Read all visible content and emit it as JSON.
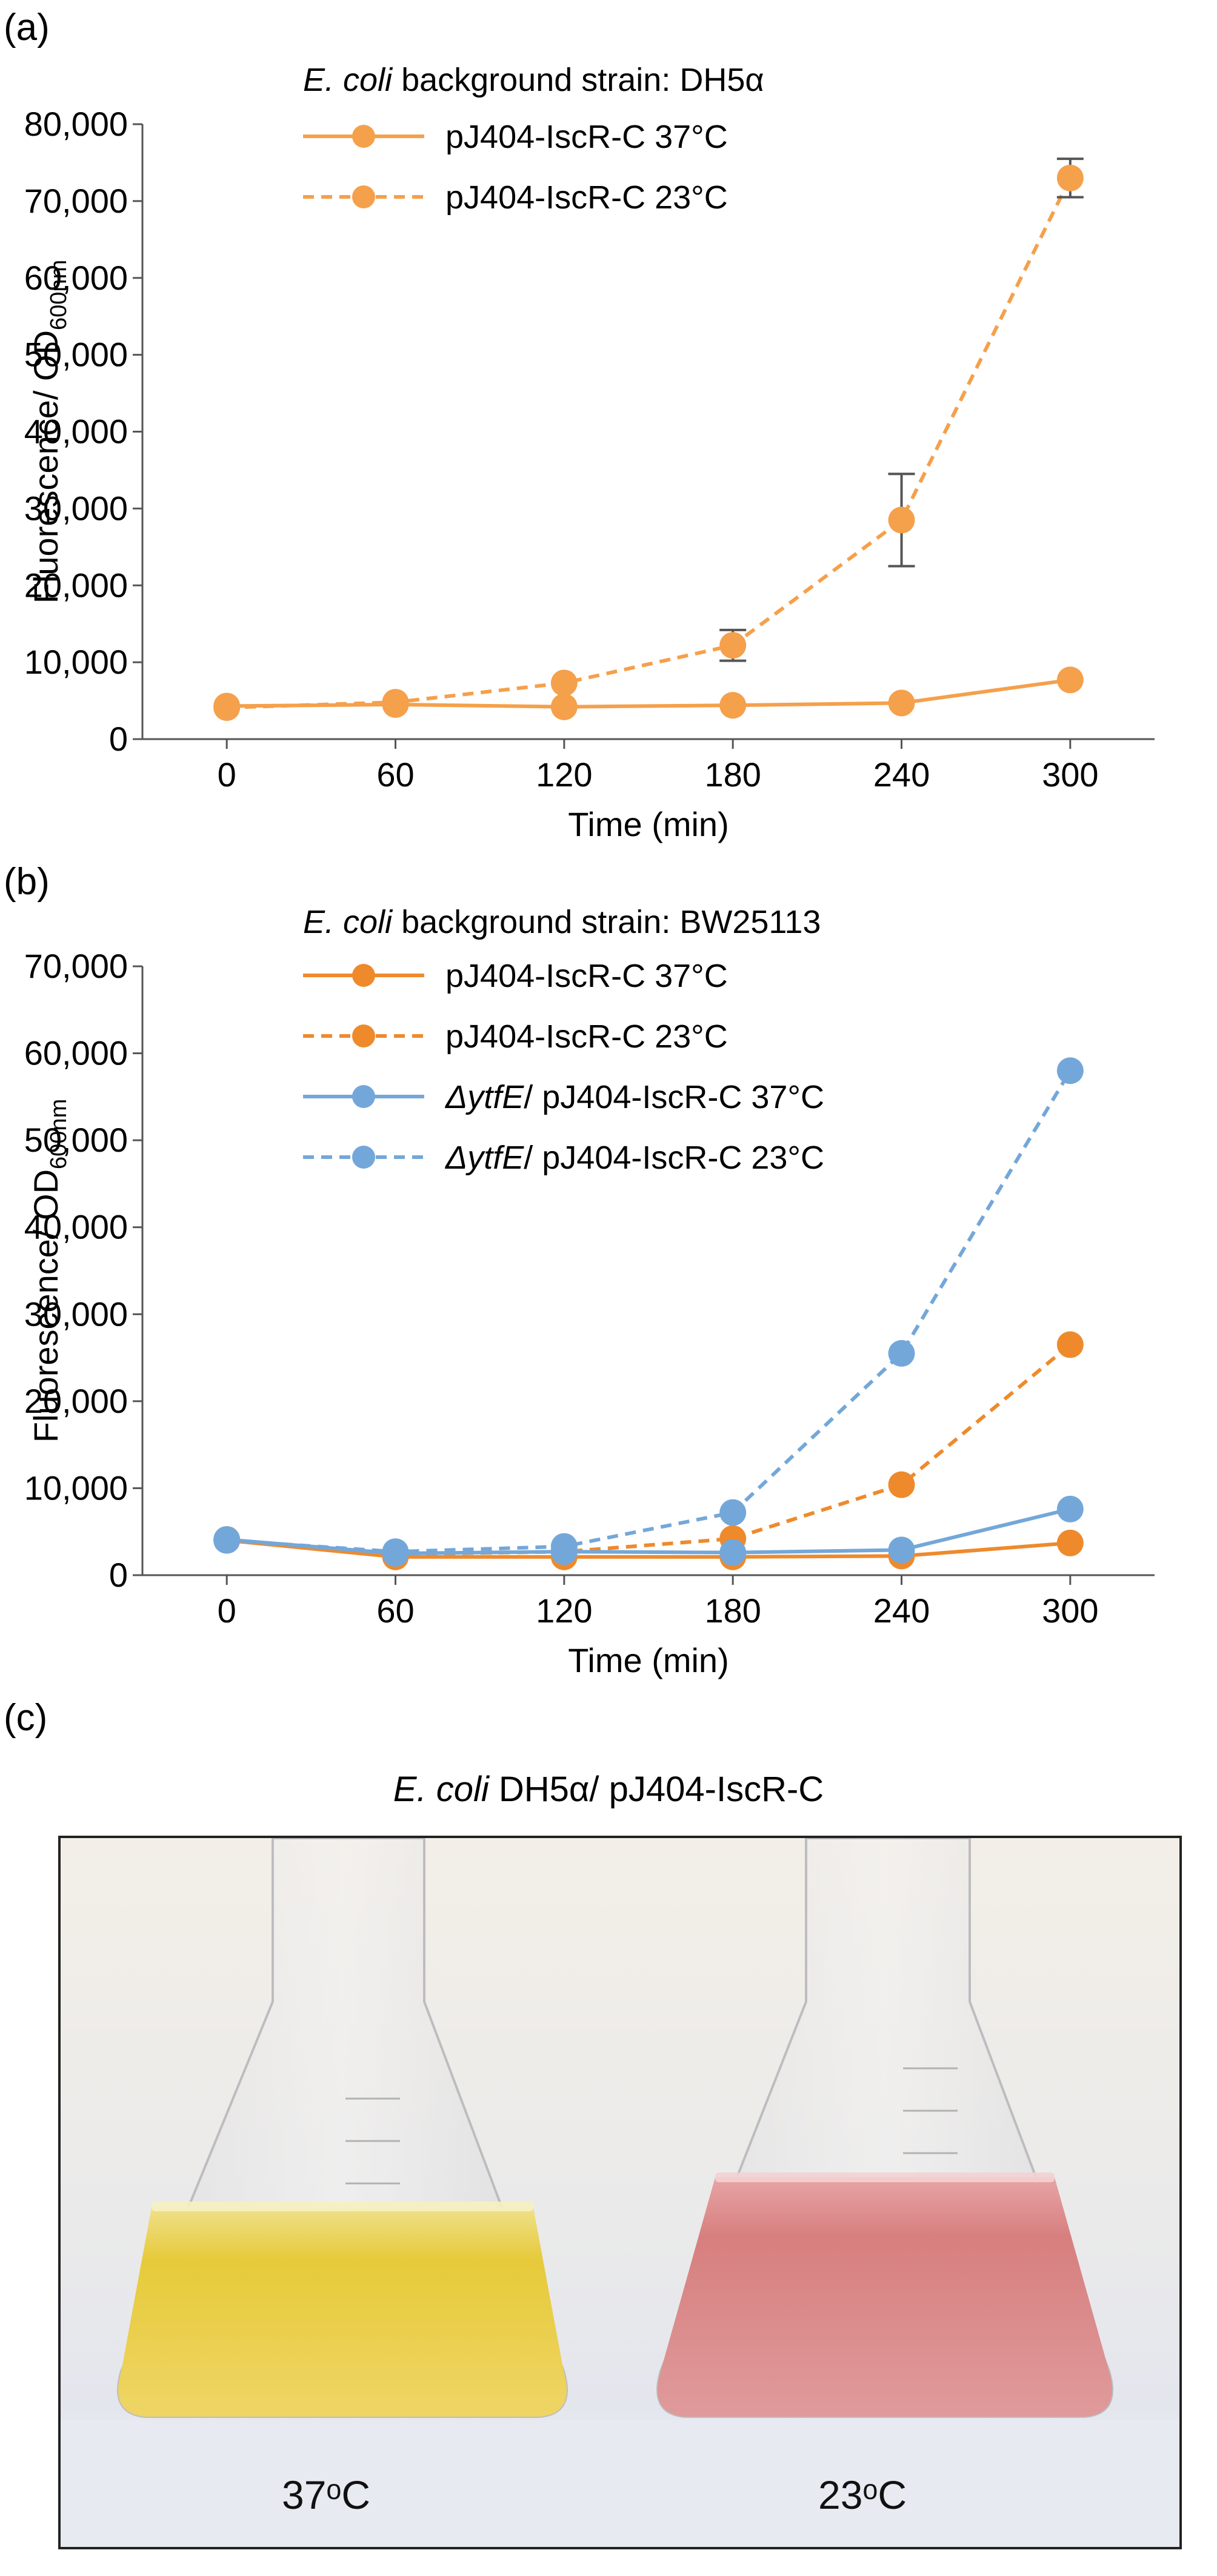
{
  "panels": {
    "a": {
      "label": "(a)"
    },
    "b": {
      "label": "(b)"
    },
    "c": {
      "label": "(c)"
    }
  },
  "colors": {
    "orange": "#F5A04B",
    "dark_orange": "#EE8A2C",
    "blue": "#74A7D9",
    "axis": "#555555"
  },
  "chart_data": [
    {
      "type": "line",
      "title_italic": "E. coli",
      "title_rest": " background  strain: DH5α",
      "ylabel_main": "Fluorescence/ OD",
      "ylabel_sub": "600nm",
      "xlabel": "Time (min)",
      "x": [
        0,
        60,
        120,
        180,
        240,
        300
      ],
      "xlim": [
        -30,
        330
      ],
      "ylim": [
        0,
        80000
      ],
      "yticks": [
        0,
        10000,
        20000,
        30000,
        40000,
        50000,
        60000,
        70000,
        80000
      ],
      "ytick_labels": [
        "0",
        "10,000",
        "20,000",
        "30,000",
        "40,000",
        "50,000",
        "60,000",
        "70,000",
        "80,000"
      ],
      "legend_position": "top-left",
      "series": [
        {
          "name": "pJ404-IscR-C  37°C",
          "name_italic": "",
          "name_rest": "pJ404-IscR-C  37°C",
          "color": "#F5A04B",
          "dashed": false,
          "values": [
            4300,
            4500,
            4200,
            4400,
            4700,
            7700
          ],
          "errors": [
            0,
            0,
            0,
            0,
            0,
            0
          ]
        },
        {
          "name": "pJ404-IscR-C  23°C",
          "name_italic": "",
          "name_rest": "pJ404-IscR-C  23°C",
          "color": "#F5A04B",
          "dashed": true,
          "values": [
            4100,
            4800,
            7300,
            12200,
            28500,
            73000
          ],
          "errors": [
            0,
            0,
            0,
            2000,
            6000,
            2500
          ]
        }
      ]
    },
    {
      "type": "line",
      "title_italic": "E. coli",
      "title_rest": " background  strain: BW25113",
      "ylabel_main": "Fluorescence/ OD",
      "ylabel_sub": "600nm",
      "xlabel": "Time (min)",
      "x": [
        0,
        60,
        120,
        180,
        240,
        300
      ],
      "xlim": [
        -30,
        330
      ],
      "ylim": [
        0,
        70000
      ],
      "yticks": [
        0,
        10000,
        20000,
        30000,
        40000,
        50000,
        60000,
        70000
      ],
      "ytick_labels": [
        "0",
        "10,000",
        "20,000",
        "30,000",
        "40,000",
        "50,000",
        "60,000",
        "70,000"
      ],
      "legend_position": "top-left",
      "series": [
        {
          "name": "pJ404-IscR-C  37°C",
          "name_italic": "",
          "name_rest": "pJ404-IscR-C  37°C",
          "color": "#EE8A2C",
          "dashed": false,
          "values": [
            4000,
            2100,
            2100,
            2100,
            2200,
            3700
          ],
          "errors": [
            0,
            0,
            0,
            0,
            0,
            0
          ]
        },
        {
          "name": "pJ404-IscR-C  23°C",
          "name_italic": "",
          "name_rest": "pJ404-IscR-C  23°C",
          "color": "#EE8A2C",
          "dashed": true,
          "values": [
            4100,
            2400,
            2700,
            4200,
            10400,
            26500
          ],
          "errors": [
            0,
            0,
            0,
            0,
            0,
            0
          ]
        },
        {
          "name": "ΔytfE/ pJ404-IscR-C  37°C",
          "name_italic": "ΔytfE",
          "name_rest": "/ pJ404-IscR-C  37°C",
          "color": "#74A7D9",
          "dashed": false,
          "values": [
            4100,
            2500,
            2700,
            2600,
            2900,
            7600
          ],
          "errors": [
            0,
            0,
            0,
            0,
            0,
            0
          ]
        },
        {
          "name": "ΔytfE/ pJ404-IscR-C  23°C",
          "name_italic": "ΔytfE",
          "name_rest": "/ pJ404-IscR-C  23°C",
          "color": "#74A7D9",
          "dashed": true,
          "values": [
            4000,
            2700,
            3300,
            7200,
            25500,
            58000
          ],
          "errors": [
            0,
            0,
            0,
            0,
            0,
            0
          ]
        }
      ]
    }
  ],
  "photo": {
    "title_italic": "E. coli",
    "title_rest": " DH5α/ pJ404-IscR-C",
    "left_label": "37ᵒC",
    "right_label": "23ᵒC",
    "left_liquid_color": "#E8CE3C",
    "right_liquid_color": "#DA8482"
  }
}
